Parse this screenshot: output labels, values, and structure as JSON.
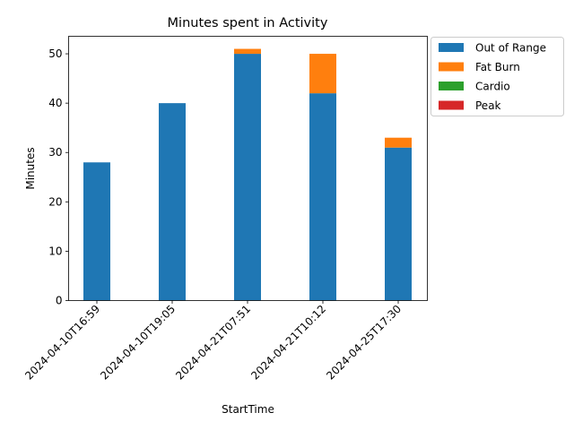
{
  "chart_data": {
    "type": "bar",
    "stacked": true,
    "title": "Minutes spent in Activity",
    "xlabel": "StartTime",
    "ylabel": "Minutes",
    "ylim": [
      0,
      53.55
    ],
    "yticks": [
      0,
      10,
      20,
      30,
      40,
      50
    ],
    "grid": false,
    "legend_position": "outside-top-right",
    "categories": [
      "2024-04-10T16:59",
      "2024-04-10T19:05",
      "2024-04-21T07:51",
      "2024-04-21T10:12",
      "2024-04-25T17:30"
    ],
    "series": [
      {
        "name": "Out of Range",
        "color": "#1f77b4",
        "values": [
          28,
          40,
          50,
          42,
          31
        ]
      },
      {
        "name": "Fat Burn",
        "color": "#ff7f0e",
        "values": [
          0,
          0,
          1,
          8,
          2
        ]
      },
      {
        "name": "Cardio",
        "color": "#2ca02c",
        "values": [
          0,
          0,
          0,
          0,
          0
        ]
      },
      {
        "name": "Peak",
        "color": "#d62728",
        "values": [
          0,
          0,
          0,
          0,
          0
        ]
      }
    ]
  }
}
